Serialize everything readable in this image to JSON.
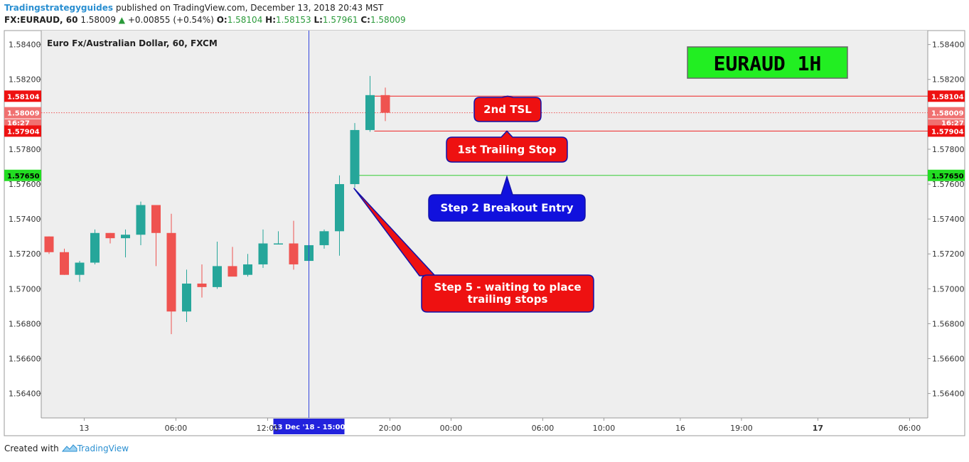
{
  "header": {
    "publisher": "Tradingstrategyguides",
    "published_text": "published on TradingView.com, December 13, 2018 20:43 MST",
    "symbol": "FX:EURAUD, 60",
    "last": "1.58009",
    "change": "+0.00855 (+0.54%)",
    "o_label": "O:",
    "o_value": "1.58104",
    "h_label": "H:",
    "h_value": "1.58153",
    "l_label": "L:",
    "l_value": "1.57961",
    "c_label": "C:",
    "c_value": "1.58009",
    "up_color": "#2a9a3a"
  },
  "footer": {
    "created_with": "Created with",
    "brand": "TradingView",
    "brand_icon": "tradingview-cloud-icon"
  },
  "colors": {
    "up": "#26a69a",
    "down": "#ef5350",
    "panel": "#eeeeee",
    "crosshair": "#3344dd",
    "green_line": "#33cc33"
  },
  "chart_data": {
    "type": "candlestick",
    "title": "Euro Fx/Australian Dollar, 60, FXCM",
    "big_label": "EURAUD 1H",
    "ylim": [
      1.5626,
      1.5848
    ],
    "y_ticks": [
      "1.56400",
      "1.56600",
      "1.56800",
      "1.57000",
      "1.57200",
      "1.57400",
      "1.57600",
      "1.57800",
      "1.58000",
      "1.58200",
      "1.58400"
    ],
    "x_ticks": [
      {
        "label": "13",
        "bar": 2.3,
        "bold": false
      },
      {
        "label": "06:00",
        "bar": 8.3,
        "bold": false
      },
      {
        "label": "12:00",
        "bar": 14.3,
        "bold": false
      },
      {
        "label": "20:00",
        "bar": 22.3,
        "bold": false
      },
      {
        "label": "00:00",
        "bar": 26.3,
        "bold": false
      },
      {
        "label": "06:00",
        "bar": 32.3,
        "bold": false
      },
      {
        "label": "10:00",
        "bar": 36.3,
        "bold": false
      },
      {
        "label": "16",
        "bar": 41.3,
        "bold": false
      },
      {
        "label": "19:00",
        "bar": 45.3,
        "bold": false
      },
      {
        "label": "17",
        "bar": 50.3,
        "bold": true
      },
      {
        "label": "06:00",
        "bar": 56.3,
        "bold": false
      }
    ],
    "crosshair": {
      "bar": 17,
      "label": "13 Dec '18 - 15:00"
    },
    "candles": [
      [
        1.573,
        1.573,
        1.572,
        1.5721
      ],
      [
        1.5721,
        1.5723,
        1.5708,
        1.5708
      ],
      [
        1.5708,
        1.5716,
        1.5704,
        1.5715
      ],
      [
        1.5715,
        1.5734,
        1.5714,
        1.5732
      ],
      [
        1.5732,
        1.5732,
        1.5726,
        1.5729
      ],
      [
        1.5729,
        1.5734,
        1.5718,
        1.5731
      ],
      [
        1.5731,
        1.575,
        1.5725,
        1.5748
      ],
      [
        1.5748,
        1.5748,
        1.5713,
        1.5732
      ],
      [
        1.5732,
        1.5743,
        1.5674,
        1.5687
      ],
      [
        1.5687,
        1.5711,
        1.5681,
        1.5703
      ],
      [
        1.5703,
        1.5714,
        1.5695,
        1.5701
      ],
      [
        1.5701,
        1.5727,
        1.57,
        1.5713
      ],
      [
        1.5713,
        1.5724,
        1.5708,
        1.5707
      ],
      [
        1.5708,
        1.572,
        1.5707,
        1.5714
      ],
      [
        1.5714,
        1.5734,
        1.5712,
        1.5726
      ],
      [
        1.5726,
        1.5733,
        1.5726,
        1.5726
      ],
      [
        1.5726,
        1.5739,
        1.5711,
        1.5714
      ],
      [
        1.5716,
        1.5729,
        1.5711,
        1.5725
      ],
      [
        1.5725,
        1.5734,
        1.5723,
        1.5733
      ],
      [
        1.5733,
        1.5765,
        1.5719,
        1.576
      ],
      [
        1.576,
        1.5795,
        1.5758,
        1.5791
      ],
      [
        1.5791,
        1.5822,
        1.579,
        1.5811
      ],
      [
        1.5811,
        1.58153,
        1.57961,
        1.58009
      ]
    ],
    "levels": [
      {
        "value": 1.58104,
        "label": "1.58104",
        "color": "#ee2222",
        "style": "solid",
        "tag_bg": "#ee1111",
        "tag_fg": "#ffffff",
        "from_bar": 21
      },
      {
        "value": 1.58009,
        "label": "1.58009",
        "color": "#ee5555",
        "style": "dotted",
        "tag_bg": "#f07070",
        "tag_fg": "#ffffff",
        "from_bar": 0
      },
      {
        "value": 1.57904,
        "label": "1.57904",
        "color": "#ee2222",
        "style": "solid",
        "tag_bg": "#ee1111",
        "tag_fg": "#ffffff",
        "from_bar": 21
      },
      {
        "value": 1.5765,
        "label": "1.57650",
        "color": "#33cc33",
        "style": "solid",
        "tag_bg": "#22dd22",
        "tag_fg": "#000000",
        "from_bar": 20
      }
    ],
    "hidden_tag": "16:27",
    "callouts": [
      {
        "text": "2nd TSL",
        "bg": "#ee1111",
        "level": 1.58104
      },
      {
        "text": "1st Trailing Stop",
        "bg": "#ee1111",
        "level": 1.57904
      },
      {
        "text": "Step 2 Breakout Entry",
        "bg": "#1111dd",
        "level": 1.5765
      },
      {
        "lines": [
          "Step 5 - waiting to place",
          "trailing stops"
        ],
        "bg": "#ee1111"
      }
    ]
  }
}
